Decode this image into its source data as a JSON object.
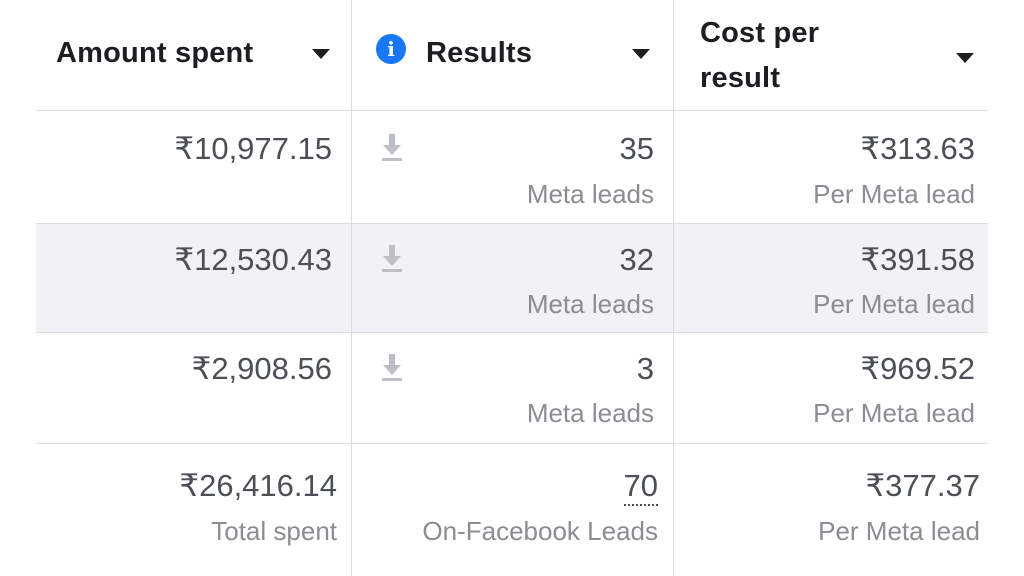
{
  "columns": [
    {
      "label": "Amount spent",
      "has_info_icon": false
    },
    {
      "label": "Results",
      "has_info_icon": true
    },
    {
      "label_line1": "Cost per",
      "label_line2": "result",
      "has_info_icon": false
    }
  ],
  "rows": [
    {
      "amount": "₹10,977.15",
      "results": "35",
      "results_sub": "Meta leads",
      "cost": "₹313.63",
      "cost_sub": "Per Meta lead"
    },
    {
      "amount": "₹12,530.43",
      "results": "32",
      "results_sub": "Meta leads",
      "cost": "₹391.58",
      "cost_sub": "Per Meta lead"
    },
    {
      "amount": "₹2,908.56",
      "results": "3",
      "results_sub": "Meta leads",
      "cost": "₹969.52",
      "cost_sub": "Per Meta lead"
    }
  ],
  "totals": {
    "amount": "₹26,416.14",
    "amount_sub": "Total spent",
    "results": "70",
    "results_sub": "On-Facebook Leads",
    "cost": "₹377.37",
    "cost_sub": "Per Meta lead"
  },
  "icons": {
    "sort": "caret-down-icon",
    "info": "info-icon",
    "download": "download-icon"
  },
  "colors": {
    "info_accent": "#1877f2",
    "row_highlight": "#f0f2f5",
    "primary_text": "#1c1e21",
    "value_text": "#4b4f56",
    "secondary_text": "#8a8d91"
  }
}
